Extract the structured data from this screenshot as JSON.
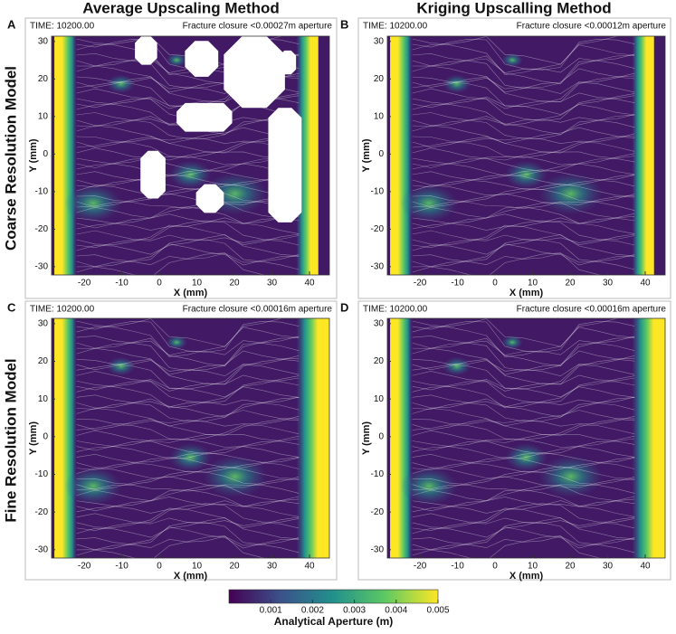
{
  "column_titles": [
    "Average Upscaling Method",
    "Kriging Upscalling Method"
  ],
  "row_titles": [
    "Coarse Resolution Model",
    "Fine Resolution Model"
  ],
  "chart_data": [
    {
      "type": "heatmap",
      "panel_label": "A",
      "time_label": "TIME: 10200.00",
      "annotation": "Fracture closure <0.00027m aperture",
      "xlabel": "X (mm)",
      "ylabel": "Y (mm)",
      "xlim": [
        -28.7,
        45.3
      ],
      "ylim": [
        -32.2,
        31.4
      ],
      "xticks": [
        -20,
        -10,
        0,
        10,
        20,
        30,
        40
      ],
      "yticks": [
        -30,
        -20,
        -10,
        0,
        10,
        20,
        30
      ]
    },
    {
      "type": "heatmap",
      "panel_label": "B",
      "time_label": "TIME: 10200.00",
      "annotation": "Fracture closure <0.00012m aperture",
      "xlabel": "X (mm)",
      "ylabel": "Y (mm)",
      "xlim": [
        -28.7,
        45.3
      ],
      "ylim": [
        -32.2,
        31.4
      ],
      "xticks": [
        -20,
        -10,
        0,
        10,
        20,
        30,
        40
      ],
      "yticks": [
        -30,
        -20,
        -10,
        0,
        10,
        20,
        30
      ]
    },
    {
      "type": "heatmap",
      "panel_label": "C",
      "time_label": "TIME: 10200.00",
      "annotation": "Fracture closure <0.00016m aperture",
      "xlabel": "X (mm)",
      "ylabel": "Y (mm)",
      "xlim": [
        -28.7,
        45.3
      ],
      "ylim": [
        -32.2,
        31.4
      ],
      "xticks": [
        -20,
        -10,
        0,
        10,
        20,
        30,
        40
      ],
      "yticks": [
        -30,
        -20,
        -10,
        0,
        10,
        20,
        30
      ]
    },
    {
      "type": "heatmap",
      "panel_label": "D",
      "time_label": "TIME: 10200.00",
      "annotation": "Fracture closure <0.00016m aperture",
      "xlabel": "X (mm)",
      "ylabel": "Y (mm)",
      "xlim": [
        -28.7,
        45.3
      ],
      "ylim": [
        -32.2,
        31.4
      ],
      "xticks": [
        -20,
        -10,
        0,
        10,
        20,
        30,
        40
      ],
      "yticks": [
        -30,
        -20,
        -10,
        0,
        10,
        20,
        30
      ]
    }
  ],
  "colorbar": {
    "label": "Analytical Aperture (m)",
    "lim": [
      0,
      0.005
    ],
    "ticks": [
      0.001,
      0.002,
      0.003,
      0.004,
      0.005
    ],
    "colormap": [
      "#440154",
      "#3b528b",
      "#21918c",
      "#5ec962",
      "#fde725"
    ]
  }
}
